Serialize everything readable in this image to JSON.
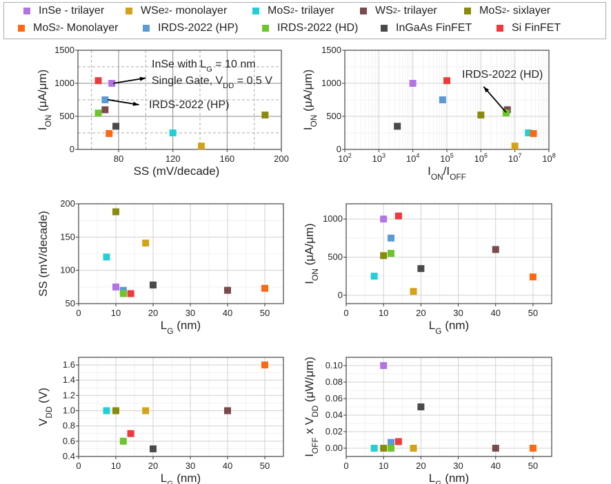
{
  "legend": [
    {
      "parts": [
        {
          "t": "InSe - trilayer"
        }
      ],
      "color": "#b274e3"
    },
    {
      "parts": [
        {
          "t": "WSe"
        },
        {
          "t": "2",
          "sub": true
        },
        {
          "t": " - monolayer"
        }
      ],
      "color": "#d4a11a"
    },
    {
      "parts": [
        {
          "t": "MoS"
        },
        {
          "t": "2",
          "sub": true
        },
        {
          "t": " - trilayer"
        }
      ],
      "color": "#23cfd6"
    },
    {
      "parts": [
        {
          "t": "WS"
        },
        {
          "t": "2",
          "sub": true
        },
        {
          "t": " - trilayer"
        }
      ],
      "color": "#7b4a4d"
    },
    {
      "parts": [
        {
          "t": "MoS"
        },
        {
          "t": "2",
          "sub": true
        },
        {
          "t": " - sixlayer"
        }
      ],
      "color": "#8a8a0c"
    },
    {
      "parts": [
        {
          "t": "MoS"
        },
        {
          "t": "2",
          "sub": true
        },
        {
          "t": " - Monolayer"
        }
      ],
      "color": "#ff6812"
    },
    {
      "parts": [
        {
          "t": "IRDS-2022 (HP)"
        }
      ],
      "color": "#5b9bd5"
    },
    {
      "parts": [
        {
          "t": "IRDS-2022 (HD)"
        }
      ],
      "color": "#6cc62a"
    },
    {
      "parts": [
        {
          "t": "InGaAs FinFET"
        }
      ],
      "color": "#4a4a4a"
    },
    {
      "parts": [
        {
          "t": "Si FinFET"
        }
      ],
      "color": "#f0393b"
    }
  ],
  "chart_data": [
    {
      "type": "scatter",
      "xlabel": [
        {
          "t": "SS (mV/decade)"
        }
      ],
      "ylabel": [
        {
          "t": "I"
        },
        {
          "t": "ON",
          "sub": true
        },
        {
          "t": " (μA/μm)"
        }
      ],
      "xlim": [
        50,
        200
      ],
      "ylim": [
        0,
        1500
      ],
      "xticks": [
        "80",
        "120",
        "160",
        "200"
      ],
      "xtick_values": [
        80,
        120,
        160,
        200
      ],
      "yticks": [
        "0",
        "500",
        "1000",
        "1500"
      ],
      "ytick_values": [
        0,
        500,
        1000,
        1500
      ],
      "xscale": "linear",
      "grid": "dashed-minor",
      "points": [
        [
          75,
          1000
        ],
        [
          141,
          50
        ],
        [
          120,
          250
        ],
        [
          70,
          600
        ],
        [
          188,
          520
        ],
        [
          73,
          240
        ],
        [
          70,
          750
        ],
        [
          65,
          550
        ],
        [
          78,
          350
        ],
        [
          65,
          1040
        ]
      ],
      "annotations": [
        {
          "lines": [
            [
              {
                "t": "InSe with L"
              },
              {
                "t": "G",
                "sub": true
              },
              {
                "t": " = 10 nm"
              }
            ],
            [
              {
                "t": "Single Gate, V"
              },
              {
                "t": "DD",
                "sub": true
              },
              {
                "t": " = 0.5 V"
              }
            ]
          ],
          "arrow_from": [
            76,
            1000
          ],
          "arrow_to": [
            100,
            1080
          ]
        },
        {
          "lines": [
            [
              {
                "t": "IRDS-2022 (HP)"
              }
            ]
          ],
          "arrow_from": [
            72,
            752
          ],
          "arrow_to": [
            95,
            675
          ]
        }
      ]
    },
    {
      "type": "scatter",
      "xlabel": [
        {
          "t": "I"
        },
        {
          "t": "ON",
          "sub": true
        },
        {
          "t": "/I"
        },
        {
          "t": "OFF",
          "sub": true
        }
      ],
      "ylabel": [
        {
          "t": "I"
        },
        {
          "t": "ON",
          "sub": true
        },
        {
          "t": " (μA/μm)"
        }
      ],
      "xlim": [
        2,
        8
      ],
      "ylim": [
        0,
        1500
      ],
      "xscale": "log",
      "xticks": [
        "10",
        "10",
        "10",
        "10",
        "10",
        "10",
        "10"
      ],
      "xtick_exp": [
        "2",
        "3",
        "4",
        "5",
        "6",
        "7",
        "8"
      ],
      "xtick_values": [
        2,
        3,
        4,
        5,
        6,
        7,
        8
      ],
      "yticks": [
        "0",
        "500",
        "1000",
        "1500"
      ],
      "ytick_values": [
        0,
        500,
        1000,
        1500
      ],
      "grid": "on",
      "points": [
        [
          10000.0,
          1000
        ],
        [
          10000000.0,
          50
        ],
        [
          25000000.0,
          250
        ],
        [
          6000000.0,
          600
        ],
        [
          1000000.0,
          520
        ],
        [
          35000000.0,
          240
        ],
        [
          75000.0,
          750
        ],
        [
          5500000.0,
          550
        ],
        [
          3500.0,
          350
        ],
        [
          100000.0,
          1040
        ]
      ],
      "annotations": [
        {
          "lines": [
            [
              {
                "t": "IRDS-2022 (HD)"
              }
            ]
          ],
          "arrow_from": [
            5500000.0,
            560
          ],
          "arrow_to": [
            1200000.0,
            950
          ]
        }
      ]
    },
    {
      "type": "scatter",
      "xlabel": [
        {
          "t": "L"
        },
        {
          "t": "G",
          "sub": true
        },
        {
          "t": " (nm)"
        }
      ],
      "ylabel": [
        {
          "t": "SS (mV/decade)"
        }
      ],
      "xlim": [
        0,
        55
      ],
      "ylim": [
        50,
        200
      ],
      "xscale": "linear",
      "xticks": [
        "0",
        "10",
        "20",
        "30",
        "40",
        "50"
      ],
      "xtick_values": [
        0,
        10,
        20,
        30,
        40,
        50
      ],
      "yticks": [
        "50",
        "100",
        "150",
        "200"
      ],
      "ytick_values": [
        50,
        100,
        150,
        200
      ],
      "grid": "on",
      "points": [
        [
          10,
          75
        ],
        [
          18,
          141
        ],
        [
          7.5,
          120
        ],
        [
          40,
          70
        ],
        [
          10,
          188
        ],
        [
          50,
          73
        ],
        [
          12,
          70
        ],
        [
          12,
          65
        ],
        [
          20,
          78
        ],
        [
          14,
          65
        ]
      ]
    },
    {
      "type": "scatter",
      "xlabel": [
        {
          "t": "L"
        },
        {
          "t": "G",
          "sub": true
        },
        {
          "t": " (nm)"
        }
      ],
      "ylabel": [
        {
          "t": "I"
        },
        {
          "t": "ON",
          "sub": true
        },
        {
          "t": " (μA/μm)"
        }
      ],
      "xlim": [
        0,
        55
      ],
      "ylim": [
        -110,
        1200
      ],
      "xscale": "linear",
      "xticks": [
        "0",
        "10",
        "20",
        "30",
        "40",
        "50"
      ],
      "xtick_values": [
        0,
        10,
        20,
        30,
        40,
        50
      ],
      "yticks": [
        "0",
        "500",
        "1000"
      ],
      "ytick_values": [
        0,
        500,
        1000
      ],
      "grid": "on",
      "points": [
        [
          10,
          1000
        ],
        [
          18,
          50
        ],
        [
          7.5,
          250
        ],
        [
          40,
          600
        ],
        [
          10,
          520
        ],
        [
          50,
          240
        ],
        [
          12,
          750
        ],
        [
          12,
          550
        ],
        [
          20,
          350
        ],
        [
          14,
          1040
        ]
      ]
    },
    {
      "type": "scatter",
      "xlabel": [
        {
          "t": "L"
        },
        {
          "t": "G",
          "sub": true
        },
        {
          "t": " (nm)"
        }
      ],
      "ylabel": [
        {
          "t": "V"
        },
        {
          "t": "DD",
          "sub": true
        },
        {
          "t": " (V)"
        }
      ],
      "xlim": [
        0,
        55
      ],
      "ylim": [
        0.4,
        1.7
      ],
      "xscale": "linear",
      "xticks": [
        "0",
        "10",
        "20",
        "30",
        "40",
        "50"
      ],
      "xtick_values": [
        0,
        10,
        20,
        30,
        40,
        50
      ],
      "yticks": [
        "0.4",
        "0.6",
        "0.8",
        "1.0",
        "1.2",
        "1.4",
        "1.6"
      ],
      "ytick_values": [
        0.4,
        0.6,
        0.8,
        1.0,
        1.2,
        1.4,
        1.6
      ],
      "grid": "on",
      "points": [
        null,
        [
          18,
          1.0
        ],
        [
          7.5,
          1.0
        ],
        [
          40,
          1.0
        ],
        [
          10,
          1.0
        ],
        [
          50,
          1.6
        ],
        null,
        [
          12,
          0.6
        ],
        [
          20,
          0.5
        ],
        [
          14,
          0.7
        ]
      ]
    },
    {
      "type": "scatter",
      "xlabel": [
        {
          "t": "L"
        },
        {
          "t": "G",
          "sub": true
        },
        {
          "t": " (nm)"
        }
      ],
      "ylabel": [
        {
          "t": "I"
        },
        {
          "t": "OFF",
          "sub": true
        },
        {
          "t": " x V"
        },
        {
          "t": "DD",
          "sub": true
        },
        {
          "t": " (μW/μm)"
        }
      ],
      "xlim": [
        0,
        55
      ],
      "ylim": [
        -0.01,
        0.11
      ],
      "xscale": "linear",
      "xticks": [
        "0",
        "10",
        "20",
        "30",
        "40",
        "50"
      ],
      "xtick_values": [
        0,
        10,
        20,
        30,
        40,
        50
      ],
      "yticks": [
        "0.00",
        "0.02",
        "0.04",
        "0.06",
        "0.08",
        "0.10"
      ],
      "ytick_values": [
        0,
        0.02,
        0.04,
        0.06,
        0.08,
        0.1
      ],
      "grid": "on",
      "points": [
        [
          10,
          0.1
        ],
        [
          18,
          0
        ],
        [
          7.5,
          0
        ],
        [
          40,
          0
        ],
        [
          10,
          0
        ],
        [
          50,
          0
        ],
        [
          12,
          0.007
        ],
        [
          12,
          0
        ],
        [
          20,
          0.05
        ],
        [
          14,
          0.008
        ]
      ]
    }
  ]
}
